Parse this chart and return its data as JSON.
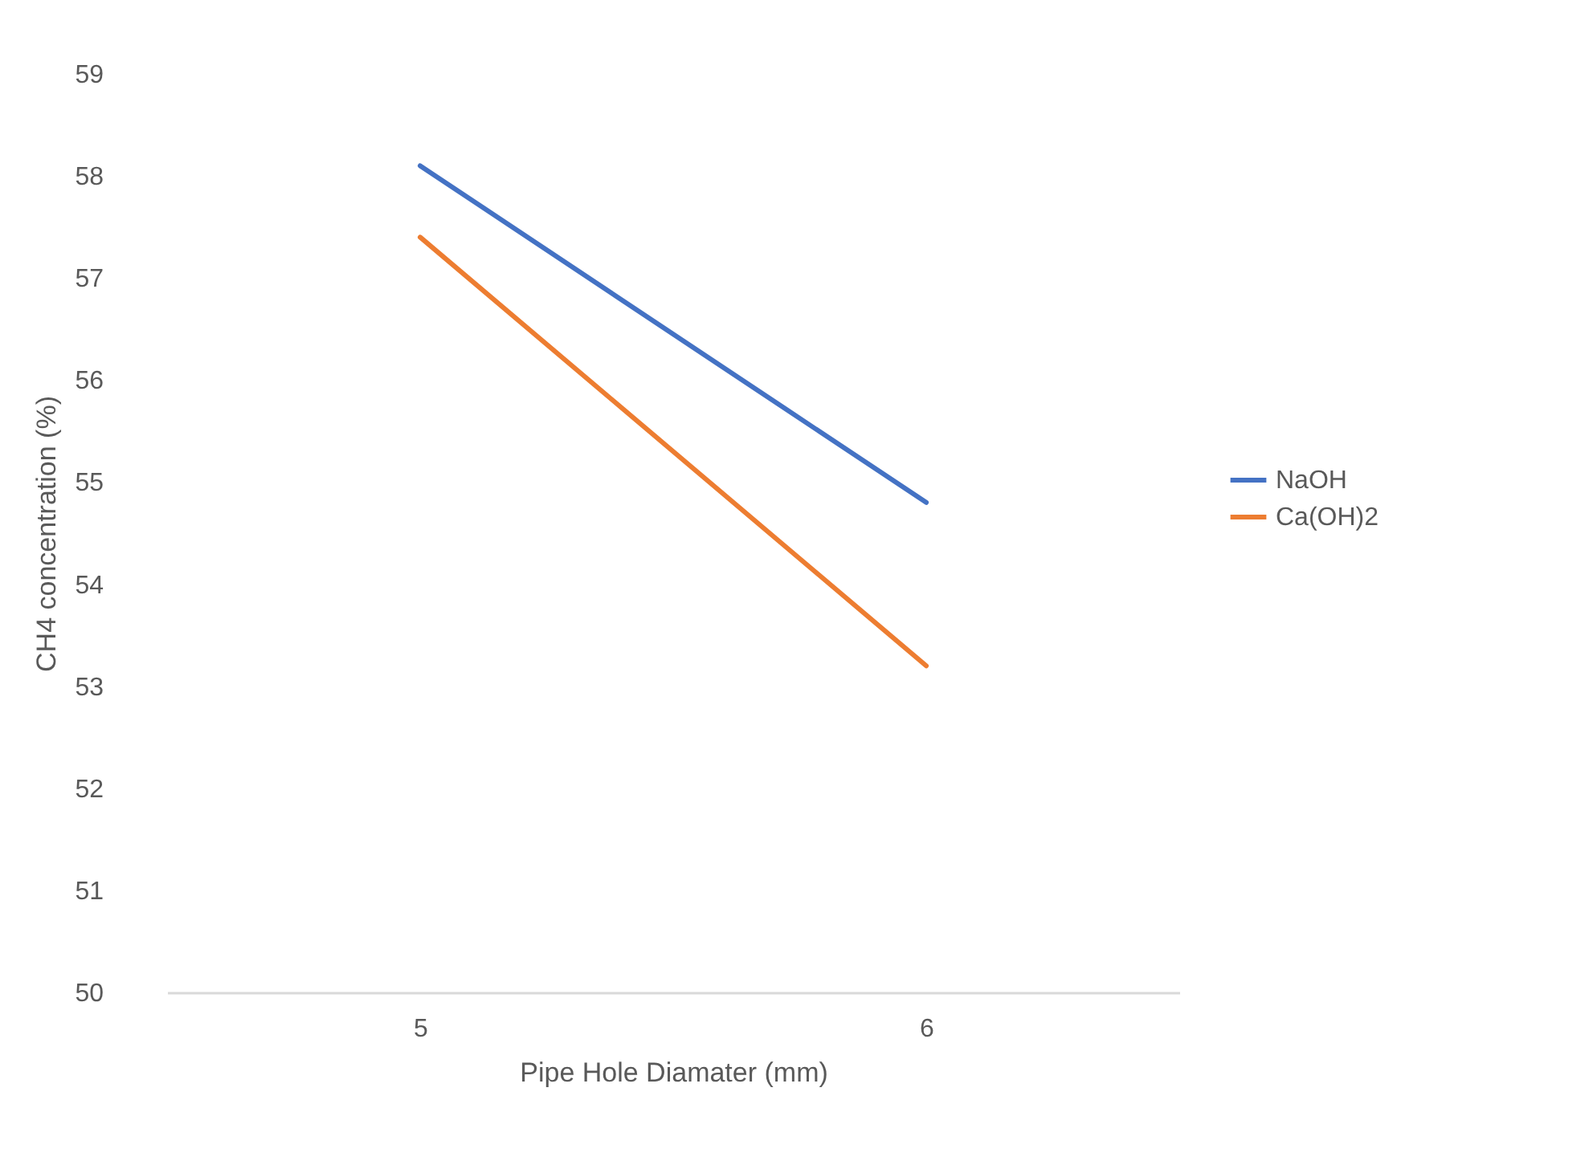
{
  "chart_data": {
    "type": "line",
    "xlabel": "Pipe Hole Diamater (mm)",
    "ylabel": "CH4 concentration (%)",
    "categories": [
      "5",
      "6"
    ],
    "series": [
      {
        "name": "NaOH",
        "color": "#4472c4",
        "values": [
          58.1,
          54.8
        ]
      },
      {
        "name": "Ca(OH)2",
        "color": "#ed7d31",
        "values": [
          57.4,
          53.2
        ]
      }
    ],
    "ylim": [
      50,
      59
    ],
    "yticks": [
      50,
      51,
      52,
      53,
      54,
      55,
      56,
      57,
      58,
      59
    ],
    "legend": "right",
    "marker": "none",
    "line_style": "solid"
  }
}
